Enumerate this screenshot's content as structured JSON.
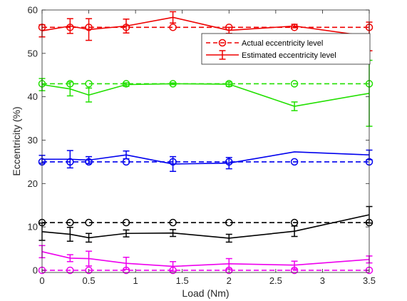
{
  "chart_data": {
    "type": "line",
    "title": "",
    "xlabel": "Load (Nm)",
    "ylabel": "Eccentricity (%)",
    "xlim": [
      0,
      3.5
    ],
    "ylim": [
      -0.5,
      60
    ],
    "xticks": [
      0,
      0.5,
      1,
      1.5,
      2,
      2.5,
      3,
      3.5
    ],
    "xtick_labels": [
      "0",
      "0.5",
      "1",
      "1.5",
      "2",
      "2.5",
      "3",
      "3.5"
    ],
    "yticks": [
      0,
      10,
      20,
      30,
      40,
      50,
      60
    ],
    "ytick_labels": [
      "0",
      "10",
      "20",
      "30",
      "40",
      "50",
      "60"
    ],
    "grid": false,
    "legend_position": "upper-right",
    "legend": [
      {
        "label": "Actual eccentricity level",
        "style": "dashed-circle"
      },
      {
        "label": "Estimated eccentricity level",
        "style": "solid-errorbar"
      }
    ],
    "x": [
      0,
      0.3,
      0.5,
      0.9,
      1.4,
      2,
      2.7,
      3.5
    ],
    "series": [
      {
        "color": "#ee0000",
        "actual": [
          56,
          56,
          56,
          56,
          56,
          56,
          56,
          56
        ],
        "estimated": [
          55.2,
          56.3,
          55.5,
          56.3,
          58.3,
          55.3,
          56.3,
          53.9
        ],
        "error": [
          1.4,
          1.7,
          2.5,
          1.6,
          1.3,
          0.7,
          0.4,
          3.3
        ]
      },
      {
        "color": "#22e000",
        "actual": [
          43,
          43,
          43,
          43,
          43,
          43,
          43,
          43
        ],
        "estimated": [
          42.8,
          41.8,
          40.4,
          42.8,
          43.0,
          42.9,
          37.8,
          40.8
        ],
        "error": [
          1.4,
          1.6,
          1.6,
          0.4,
          0.2,
          0.5,
          1.0,
          7.6
        ]
      },
      {
        "color": "#0000ee",
        "actual": [
          25,
          25,
          25,
          25,
          25,
          25,
          25,
          25
        ],
        "estimated": [
          25.6,
          25.6,
          25.4,
          26.6,
          24.5,
          24.7,
          27.3,
          26.6
        ],
        "error": [
          0.9,
          2.0,
          0.8,
          0.9,
          1.7,
          1.3,
          0.0,
          1.1
        ]
      },
      {
        "color": "#000000",
        "actual": [
          11,
          11,
          11,
          11,
          11,
          11,
          11,
          11
        ],
        "estimated": [
          8.9,
          8.3,
          7.5,
          8.5,
          8.6,
          7.4,
          9.0,
          12.8
        ],
        "error": [
          2.0,
          1.6,
          1.0,
          0.8,
          0.8,
          0.9,
          1.2,
          1.9
        ]
      },
      {
        "color": "#ee00ee",
        "actual": [
          0,
          0,
          0,
          0,
          0,
          0,
          0,
          0
        ],
        "estimated": [
          4.3,
          2.8,
          2.7,
          1.6,
          0.9,
          1.5,
          1.2,
          2.5
        ],
        "error": [
          1.4,
          0.8,
          1.7,
          1.4,
          1.1,
          1.2,
          0.9,
          0.8
        ]
      }
    ]
  }
}
